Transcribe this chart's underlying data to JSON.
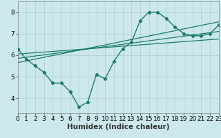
{
  "title": "",
  "xlabel": "Humidex (Indice chaleur)",
  "bg_color": "#cce8ec",
  "line_color": "#1a7a6e",
  "grid_color": "#aacdd4",
  "x_main": [
    0,
    1,
    2,
    3,
    4,
    5,
    6,
    7,
    8,
    9,
    10,
    11,
    12,
    13,
    14,
    15,
    16,
    17,
    18,
    19,
    20,
    21,
    22,
    23
  ],
  "y_main": [
    6.3,
    5.8,
    5.5,
    5.2,
    4.7,
    4.7,
    4.3,
    3.6,
    3.8,
    5.1,
    4.9,
    5.7,
    6.3,
    6.6,
    7.6,
    8.0,
    8.0,
    7.7,
    7.3,
    7.0,
    6.9,
    6.9,
    7.0,
    7.4
  ],
  "lines": [
    {
      "x0": 0,
      "y0": 5.65,
      "x1": 23,
      "y1": 7.55
    },
    {
      "x0": 0,
      "y0": 5.85,
      "x1": 23,
      "y1": 7.1
    },
    {
      "x0": 0,
      "y0": 6.05,
      "x1": 23,
      "y1": 6.75
    }
  ],
  "ylim": [
    3.3,
    8.5
  ],
  "xlim": [
    0,
    23
  ],
  "yticks": [
    4,
    5,
    6,
    7,
    8
  ],
  "xticks": [
    0,
    1,
    2,
    3,
    4,
    5,
    6,
    7,
    8,
    9,
    10,
    11,
    12,
    13,
    14,
    15,
    16,
    17,
    18,
    19,
    20,
    21,
    22,
    23
  ],
  "tick_fontsize": 6.5,
  "xlabel_fontsize": 7.5
}
